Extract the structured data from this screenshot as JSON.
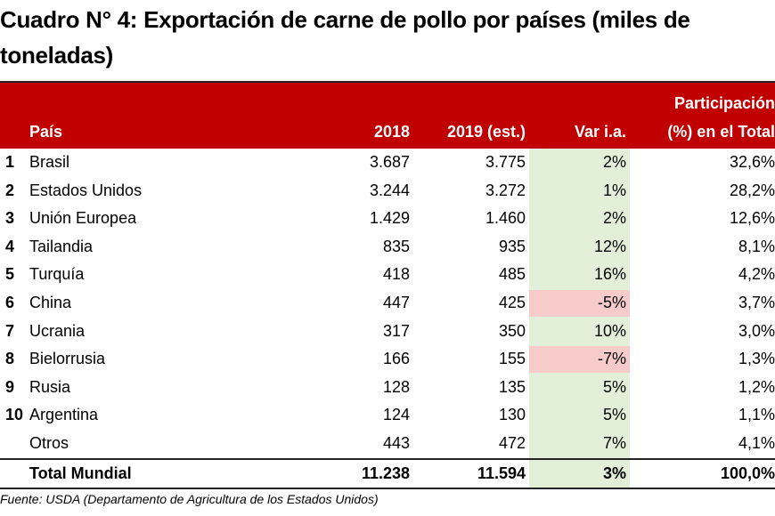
{
  "title": "Cuadro N° 4: Exportación de carne de pollo por países (miles de toneladas)",
  "colors": {
    "header_bg": "#c00000",
    "var_positive_bg": "#e2efd9",
    "var_negative_bg": "#f8cbcb"
  },
  "chart_data": {
    "type": "table",
    "columns": [
      "País",
      "2018",
      "2019 (est.)",
      "Var i.a.",
      "Participación (%) en el Total"
    ],
    "column_header_part_line1": "Participación",
    "column_header_part_line2": "(%) en el Total",
    "rows": [
      {
        "rank": "1",
        "country": "Brasil",
        "y2018": "3.687",
        "y2019": "3.775",
        "var": "2%",
        "part": "32,6%"
      },
      {
        "rank": "2",
        "country": "Estados Unidos",
        "y2018": "3.244",
        "y2019": "3.272",
        "var": "1%",
        "part": "28,2%"
      },
      {
        "rank": "3",
        "country": "Unión Europea",
        "y2018": "1.429",
        "y2019": "1.460",
        "var": "2%",
        "part": "12,6%"
      },
      {
        "rank": "4",
        "country": "Tailandia",
        "y2018": "835",
        "y2019": "935",
        "var": "12%",
        "part": "8,1%"
      },
      {
        "rank": "5",
        "country": "Turquía",
        "y2018": "418",
        "y2019": "485",
        "var": "16%",
        "part": "4,2%"
      },
      {
        "rank": "6",
        "country": "China",
        "y2018": "447",
        "y2019": "425",
        "var": "-5%",
        "part": "3,7%"
      },
      {
        "rank": "7",
        "country": "Ucrania",
        "y2018": "317",
        "y2019": "350",
        "var": "10%",
        "part": "3,0%"
      },
      {
        "rank": "8",
        "country": "Bielorrusia",
        "y2018": "166",
        "y2019": "155",
        "var": "-7%",
        "part": "1,3%"
      },
      {
        "rank": "9",
        "country": "Rusia",
        "y2018": "128",
        "y2019": "135",
        "var": "5%",
        "part": "1,2%"
      },
      {
        "rank": "10",
        "country": "Argentina",
        "y2018": "124",
        "y2019": "130",
        "var": "5%",
        "part": "1,1%"
      },
      {
        "rank": "",
        "country": "Otros",
        "y2018": "443",
        "y2019": "472",
        "var": "7%",
        "part": "4,1%"
      }
    ],
    "total": {
      "country": "Total Mundial",
      "y2018": "11.238",
      "y2019": "11.594",
      "var": "3%",
      "part": "100,0%"
    }
  },
  "source": "Fuente: USDA (Departamento de Agricultura de los Estados Unidos)"
}
